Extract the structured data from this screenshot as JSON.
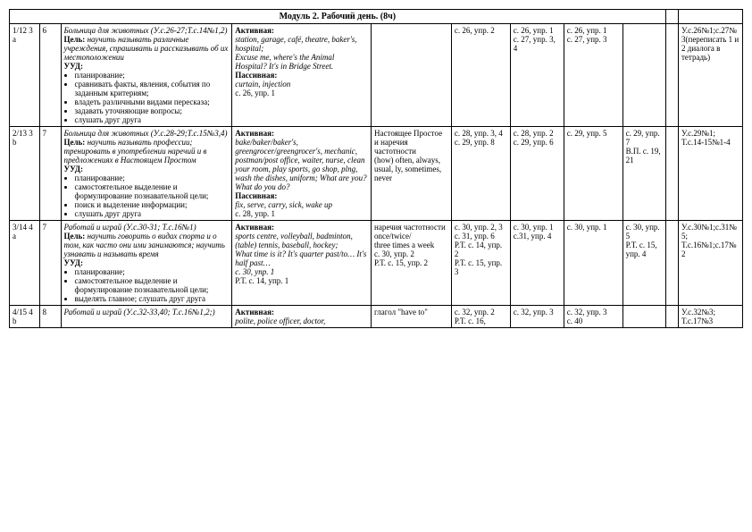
{
  "header": "Модуль 2. Рабочий день. (8ч)",
  "rows": [
    {
      "id": "1/12 3 a",
      "num": "6",
      "topic_title": "Больница для животных (У.с.26-27;Т.с.14№1,2)",
      "goal_label": "Цель:",
      "goal": "научить называть различные учреждения, спрашивать и рассказывать об их местоположении",
      "uud_label": "УУД:",
      "uud": [
        "планирование;",
        "сравнивать факты, явления, события по заданным критериям;",
        "владеть различными видами пересказа;",
        "задавать уточняющие вопросы;",
        "слушать друг друга"
      ],
      "act_label": "Активная:",
      "act_words": "station, garage, café, theatre, baker's, hospital;",
      "act_ex": "Excuse me, where's the Animal Hospital? It's in Bridge Street.",
      "pass_label": "Пассивная:",
      "pass_words": "curtain, injection",
      "pass_ref": "с. 26, упр. 1",
      "col_e": "",
      "col_f": "с. 26, упр. 2",
      "col_g": "с. 26, упр. 1\nс. 27, упр. 3, 4",
      "col_h": "с. 26, упр. 1\nс. 27, упр. 3",
      "col_i": "",
      "col_j": "",
      "hw": "У.с.26№1;с.27№3(переписать 1 и 2 диалога в тетрадь)"
    },
    {
      "id": "2/13 3 b",
      "num": "7",
      "topic_title": "Больница для животных (У.с.28-29;Т.с.15№3,4)",
      "goal_label": "Цель:",
      "goal": "научить называть профессии; тренировать в употреблении наречий и в предложениях в Настоящем Простом",
      "uud_label": "УУД:",
      "uud": [
        "планирование;",
        "самостоятельное выделение и формулирование познавательной цели;",
        "поиск и выделение информации;",
        "слушать друг друга"
      ],
      "act_label": "Активная:",
      "act_words": "bake/baker/baker's, greengrocer/greengrocer's, mechanic, postman/post office, waiter, nurse, clean your room, play sports, go shop, plng, wash the dishes, uniform; What are you?",
      "act_ex": "What do you do?",
      "pass_label": "Пассивная:",
      "pass_words": "fix, serve, carry, sick, wake up",
      "pass_ref": "с. 28, упр. 1",
      "col_e": "Настоящее Простое и наречия частотности\n(how) often, always, usual, ly, sometimes, never",
      "col_f": "с. 28, упр. 3, 4\nс. 29, упр. 8",
      "col_g": "с. 28, упр. 2\nс. 29, упр. 6",
      "col_h": "с. 29, упр. 5",
      "col_i": "с. 29, упр. 7\nВ.П. с. 19, 21",
      "col_j": "",
      "hw": "У.с.29№1; Т.с.14-15№1-4"
    },
    {
      "id": "3/14 4 a",
      "num": "7",
      "topic_title": "Работай и играй (У.с.30-31; Т.с.16№1)",
      "goal_label": "Цель:",
      "goal": "научить говорить о видах спорта и о том, как часто они ими занимаются; научить узнавать и называть время",
      "uud_label": "УУД:",
      "uud": [
        "планирование;",
        "самостоятельное выделение и формулирование познавательной цели;",
        "выделять главное; слушать друг друга"
      ],
      "act_label": "Активная:",
      "act_words": "sports centre, volleyball, badminton, (table) tennis, baseball, hockey;",
      "act_ex": "What time is it? It's quarter past/to… It's half past…",
      "pass_label": "",
      "pass_words": "с. 30, упр. 1",
      "pass_ref": "Р.Т. с. 14, упр. 1",
      "col_e": "наречия частотности\nonce/twice/\nthree times a week\nс. 30, упр. 2\nР.Т. с. 15, упр. 2",
      "col_f": "с. 30, упр. 2, 3\nс. 31, упр. 6\nР.Т. с. 14, упр. 2\nР.Т. с. 15, упр. 3",
      "col_g": "с. 30, упр. 1\nс.31, упр. 4",
      "col_h": "с. 30, упр. 1",
      "col_i": "с. 30, упр. 5\nР.Т. с. 15, упр. 4",
      "col_j": "",
      "hw": "У.с.30№1;с.31№5; Т.с.16№1;с.17№2"
    },
    {
      "id": "4/15 4 b",
      "num": "8",
      "topic_title": "Работай и играй (У.с.32-33,40; Т.с.16№1,2;)",
      "goal_label": "",
      "goal": "",
      "uud_label": "",
      "uud": [],
      "act_label": "Активная:",
      "act_words": "polite, police officer, doctor,",
      "act_ex": "",
      "pass_label": "",
      "pass_words": "",
      "pass_ref": "",
      "col_e": "глагол \"have to\"",
      "col_f": "с. 32, упр. 2\nР.Т. с. 16,",
      "col_g": "с. 32, упр. 3",
      "col_h": "с. 32, упр. 3\nс. 40",
      "col_i": "",
      "col_j": "",
      "hw": "У.с.32№3; Т.с.17№3"
    }
  ]
}
